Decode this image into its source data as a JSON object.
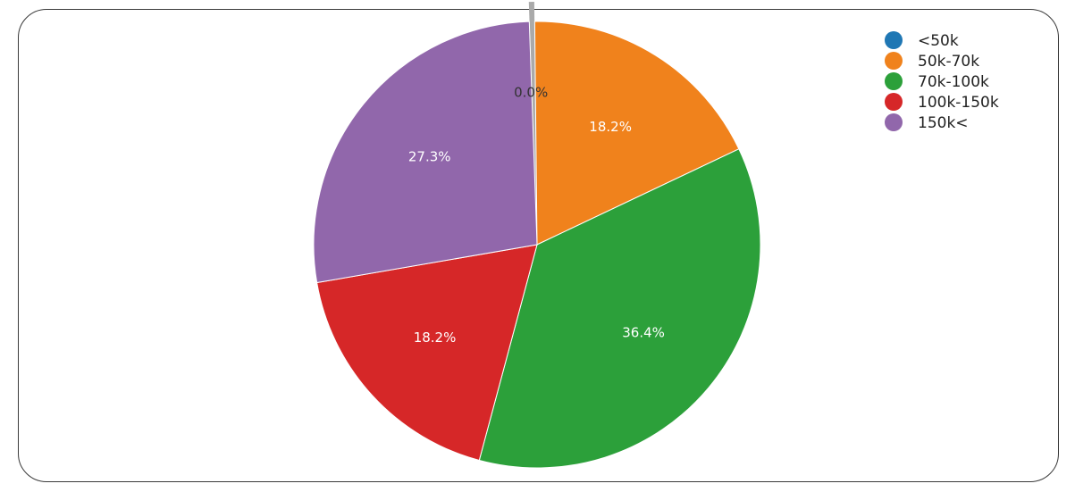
{
  "chart_data": {
    "type": "pie",
    "categories": [
      "<50k",
      "50k-70k",
      "70k-100k",
      "100k-150k",
      "150k<"
    ],
    "values": [
      0.0,
      18.2,
      36.4,
      18.2,
      27.3
    ],
    "labels": [
      "0.0%",
      "18.2%",
      "36.4%",
      "18.2%",
      "27.3%"
    ],
    "colors": [
      "#1f77b4",
      "#f0821c",
      "#2ca03a",
      "#d62728",
      "#9167ab"
    ],
    "zero_slice_color": "#aaaaaa",
    "legend_placement": "top-right"
  }
}
